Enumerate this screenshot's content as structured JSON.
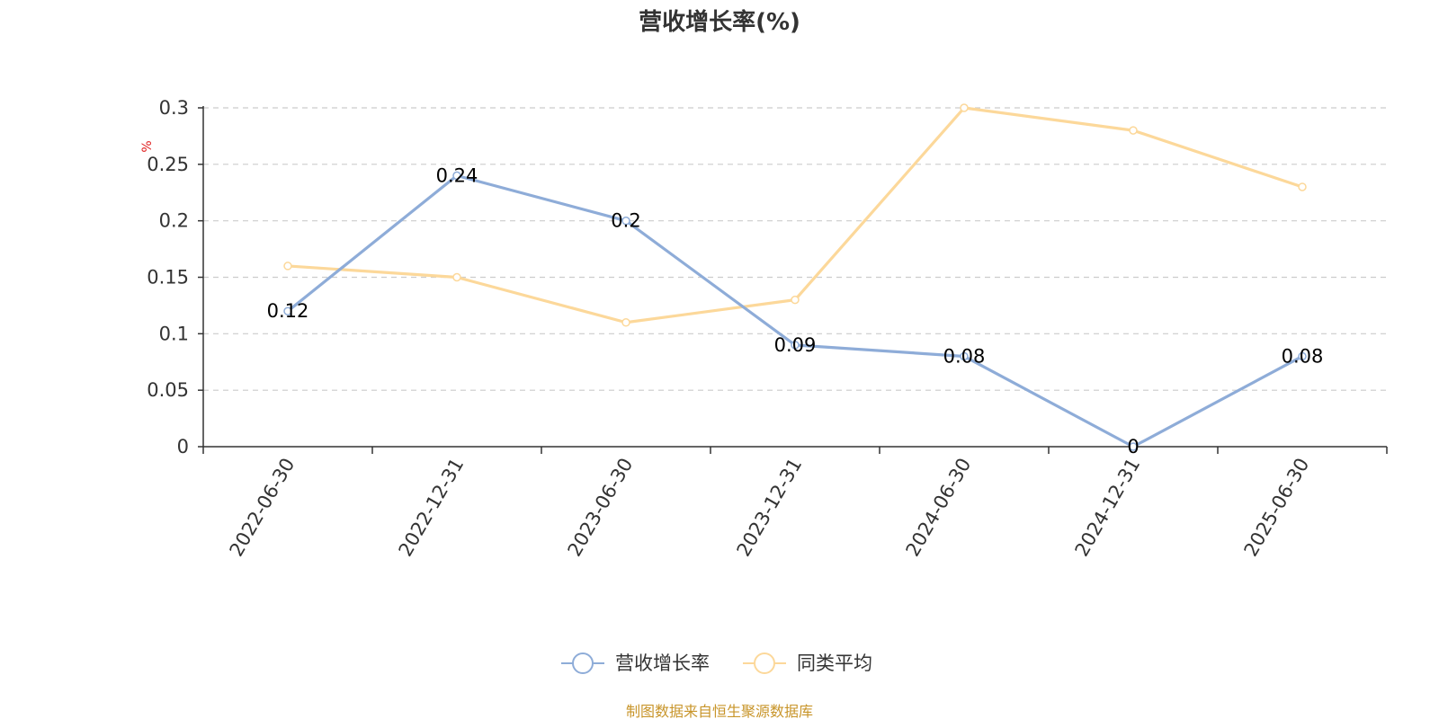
{
  "chart_data": {
    "type": "line",
    "title": "营收增长率(%)",
    "ylabel": "%",
    "categories": [
      "2022-06-30",
      "2022-12-31",
      "2023-06-30",
      "2023-12-31",
      "2024-06-30",
      "2024-12-31",
      "2025-06-30"
    ],
    "ylim": [
      0,
      0.3
    ],
    "yticks": [
      "0",
      "0.05",
      "0.1",
      "0.15",
      "0.2",
      "0.25",
      "0.3"
    ],
    "grid": true,
    "legend_position": "bottom-center",
    "series": [
      {
        "name": "营收增长率",
        "values": [
          0.12,
          0.24,
          0.2,
          0.09,
          0.08,
          0,
          0.08
        ],
        "labels": [
          "0.12",
          "0.24",
          "0.2",
          "0.09",
          "0.08",
          "0",
          "0.08"
        ],
        "color": "#8eacd8"
      },
      {
        "name": "同类平均",
        "values": [
          0.16,
          0.15,
          0.11,
          0.13,
          0.3,
          0.28,
          0.23
        ],
        "color": "#fcd89a"
      }
    ],
    "source": "制图数据来自恒生聚源数据库",
    "colors": {
      "axis": "#333333",
      "grid": "#cccccc",
      "unit": "#e02020",
      "source": "#c8952a"
    }
  }
}
